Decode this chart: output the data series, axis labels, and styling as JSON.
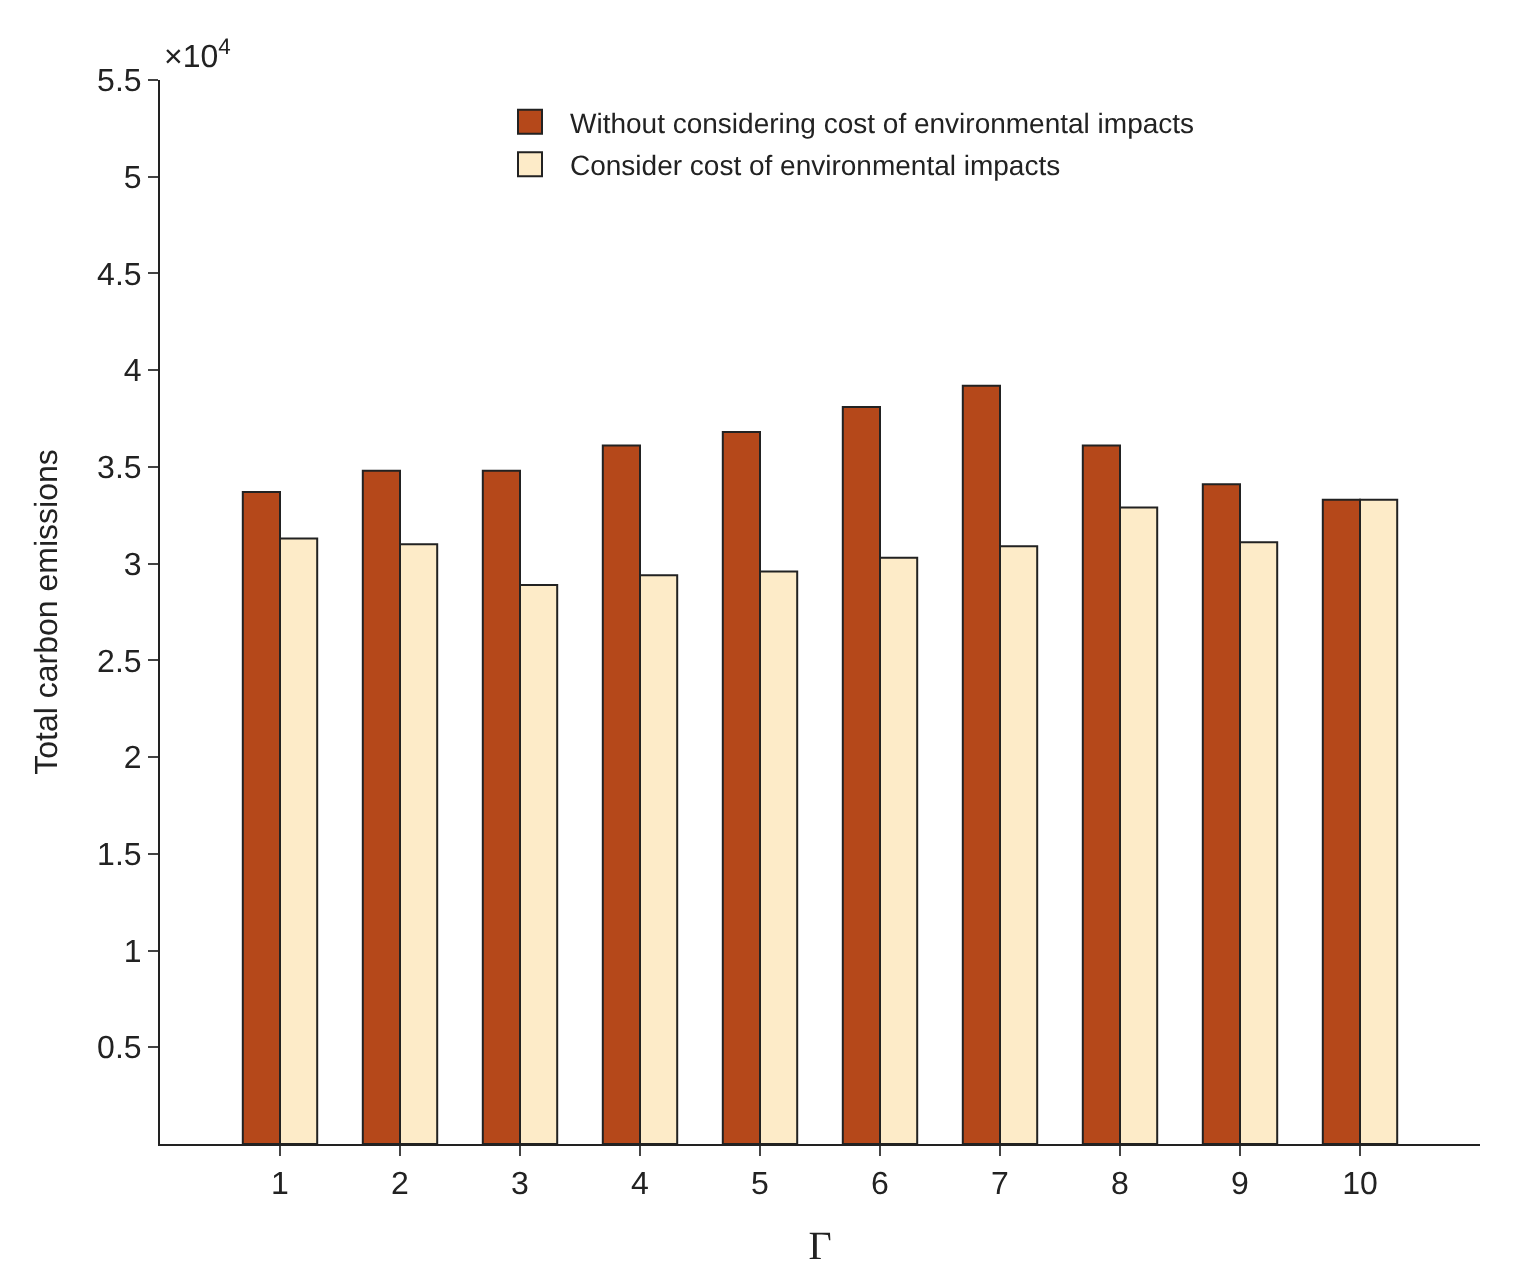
{
  "chart_data": {
    "type": "bar",
    "xlabel": "Γ",
    "ylabel": "Total carbon emissions",
    "categories": [
      "1",
      "2",
      "3",
      "4",
      "5",
      "6",
      "7",
      "8",
      "9",
      "10"
    ],
    "series": [
      {
        "name": "Without considering cost of environmental impacts",
        "color": "#b5481a",
        "values": [
          3.37,
          3.48,
          3.48,
          3.61,
          3.68,
          3.81,
          3.92,
          3.61,
          3.41,
          3.33
        ]
      },
      {
        "name": "Consider cost of environmental impacts",
        "color": "#fdebc8",
        "values": [
          3.13,
          3.1,
          2.89,
          2.94,
          2.96,
          3.03,
          3.09,
          3.29,
          3.11,
          3.33
        ]
      }
    ],
    "ylim": [
      0,
      5.5
    ],
    "yticks": [
      0.5,
      1,
      1.5,
      2,
      2.5,
      3,
      3.5,
      4,
      4.5,
      5,
      5.5
    ],
    "annotations": [
      "×10$^{4}$"
    ],
    "legend": "top"
  }
}
